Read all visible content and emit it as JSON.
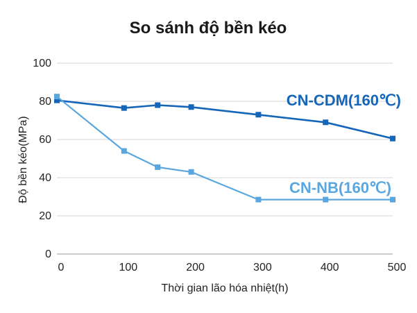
{
  "chart_data": {
    "type": "line",
    "title": "So sánh độ bền kéo",
    "xlabel": "Thời gian lão hóa nhiệt(h)",
    "ylabel": "Độ bền kéo(MPa)",
    "xlim": [
      0,
      500
    ],
    "ylim": [
      0,
      100
    ],
    "x_ticks": [
      "0",
      "100",
      "200",
      "300",
      "400",
      "500"
    ],
    "y_ticks": [
      "0",
      "20",
      "40",
      "60",
      "80",
      "100"
    ],
    "grid": true,
    "series": [
      {
        "name": "CN-CDM(160℃)",
        "color": "#1565b8",
        "x": [
          0,
          100,
          150,
          200,
          300,
          400,
          500
        ],
        "y": [
          80.5,
          76.5,
          78,
          77,
          73,
          69,
          60.5
        ]
      },
      {
        "name": "CN-NB(160℃)",
        "color": "#5aa6de",
        "x": [
          0,
          100,
          150,
          200,
          300,
          400,
          500
        ],
        "y": [
          82.5,
          54,
          45.5,
          43,
          28.5,
          28.5,
          28.5
        ]
      }
    ]
  }
}
